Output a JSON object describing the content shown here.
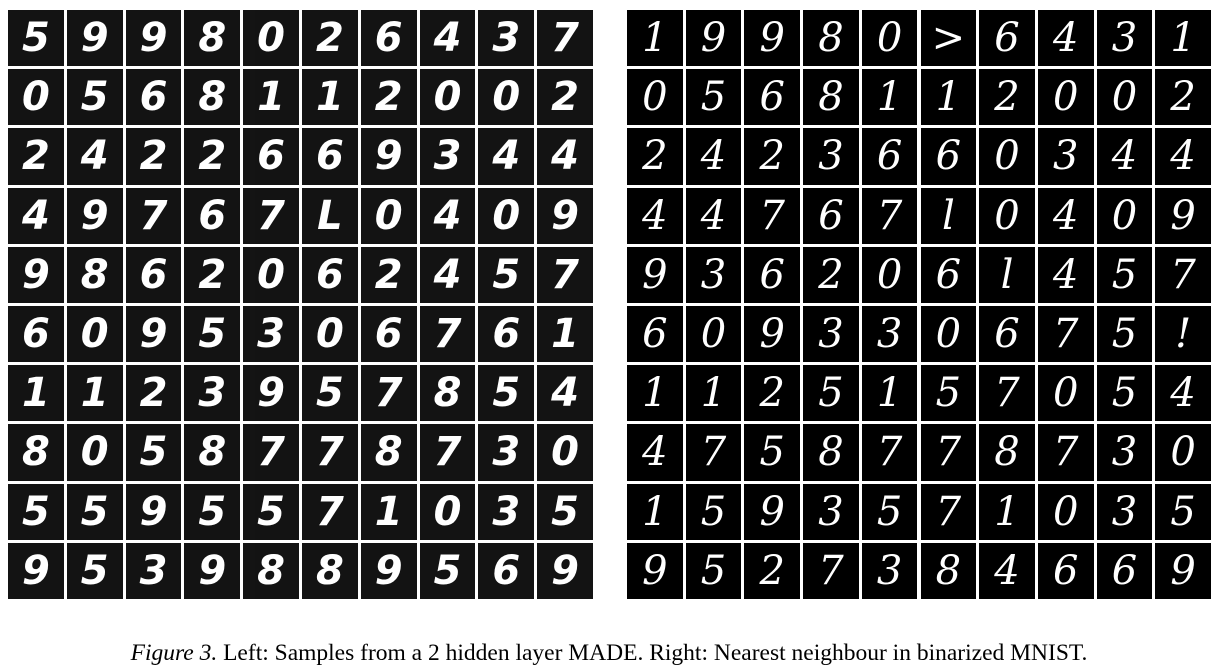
{
  "figure": {
    "left_panel": {
      "rows": [
        [
          "5",
          "9",
          "9",
          "8",
          "0",
          "2",
          "6",
          "4",
          "3",
          "7"
        ],
        [
          "0",
          "5",
          "6",
          "8",
          "1",
          "1",
          "2",
          "0",
          "0",
          "2"
        ],
        [
          "2",
          "4",
          "2",
          "2",
          "6",
          "6",
          "9",
          "3",
          "4",
          "4"
        ],
        [
          "4",
          "9",
          "7",
          "6",
          "7",
          "L",
          "0",
          "4",
          "0",
          "9"
        ],
        [
          "9",
          "8",
          "6",
          "2",
          "0",
          "6",
          "2",
          "4",
          "5",
          "7"
        ],
        [
          "6",
          "0",
          "9",
          "5",
          "3",
          "0",
          "6",
          "7",
          "6",
          "1"
        ],
        [
          "1",
          "1",
          "2",
          "3",
          "9",
          "5",
          "7",
          "8",
          "5",
          "4"
        ],
        [
          "8",
          "0",
          "5",
          "8",
          "7",
          "7",
          "8",
          "7",
          "3",
          "0"
        ],
        [
          "5",
          "5",
          "9",
          "5",
          "5",
          "7",
          "1",
          "0",
          "3",
          "5"
        ],
        [
          "9",
          "5",
          "3",
          "9",
          "8",
          "8",
          "9",
          "5",
          "6",
          "9"
        ]
      ]
    },
    "right_panel": {
      "rows": [
        [
          "1",
          "9",
          "9",
          "8",
          "0",
          ">",
          "6",
          "4",
          "3",
          "1"
        ],
        [
          "0",
          "5",
          "6",
          "8",
          "1",
          "1",
          "2",
          "0",
          "0",
          "2"
        ],
        [
          "2",
          "4",
          "2",
          "3",
          "6",
          "6",
          "0",
          "3",
          "4",
          "4"
        ],
        [
          "4",
          "4",
          "7",
          "6",
          "7",
          "l",
          "0",
          "4",
          "0",
          "9"
        ],
        [
          "9",
          "3",
          "6",
          "2",
          "0",
          "6",
          "l",
          "4",
          "5",
          "7"
        ],
        [
          "6",
          "0",
          "9",
          "3",
          "3",
          "0",
          "6",
          "7",
          "5",
          "!"
        ],
        [
          "1",
          "1",
          "2",
          "5",
          "1",
          "5",
          "7",
          "0",
          "5",
          "4"
        ],
        [
          "4",
          "7",
          "5",
          "8",
          "7",
          "7",
          "8",
          "7",
          "3",
          "0"
        ],
        [
          "1",
          "5",
          "9",
          "3",
          "5",
          "7",
          "1",
          "0",
          "3",
          "5"
        ],
        [
          "9",
          "5",
          "2",
          "7",
          "3",
          "8",
          "4",
          "6",
          "6",
          "9"
        ]
      ]
    },
    "caption": {
      "label": "Figure 3.",
      "text": " Left: Samples from a 2 hidden layer MADE. Right: Nearest neighbour in binarized MNIST."
    }
  }
}
